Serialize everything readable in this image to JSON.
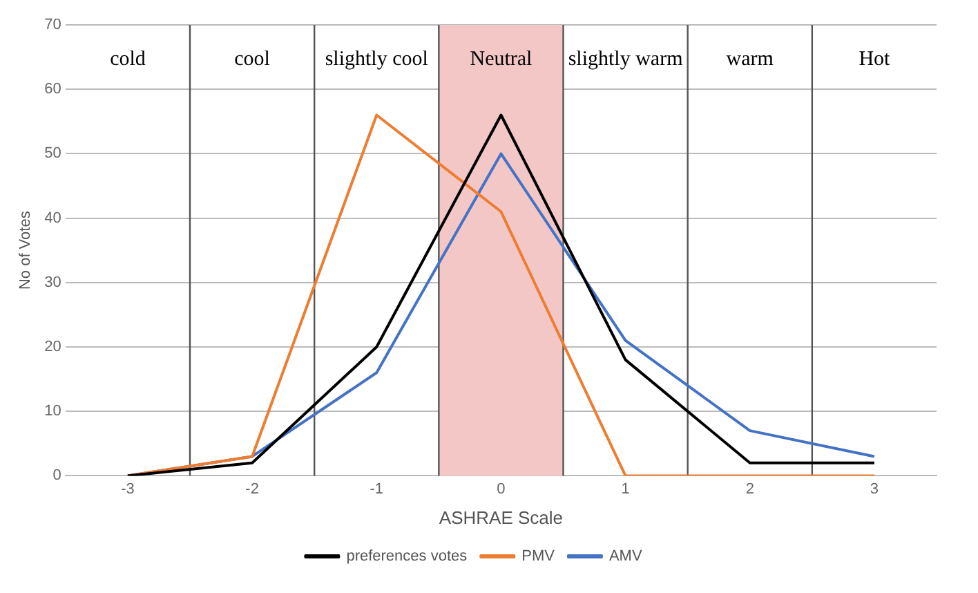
{
  "chart_data": {
    "type": "line",
    "xlabel": "ASHRAE Scale",
    "ylabel": "No of Votes",
    "x": [
      -3,
      -2,
      -1,
      0,
      1,
      2,
      3
    ],
    "xlim": [
      -3.5,
      3.5
    ],
    "xticks": [
      -3,
      -2,
      -1,
      0,
      1,
      2,
      3
    ],
    "ylim": [
      0,
      70
    ],
    "yticks": [
      0,
      10,
      20,
      30,
      40,
      50,
      60,
      70
    ],
    "grid": "y",
    "legend": "bottom",
    "marker": "none",
    "line_style": "solid",
    "series": [
      {
        "name": "preferences votes",
        "color": "#000000",
        "values": [
          0,
          2,
          20,
          56,
          18,
          2,
          2
        ]
      },
      {
        "name": "PMV",
        "color": "#ed7d31",
        "values": [
          0,
          3,
          56,
          41,
          0,
          0,
          0
        ]
      },
      {
        "name": "AMV",
        "color": "#4472c4",
        "values": [
          0,
          3,
          16,
          50,
          21,
          7,
          3
        ]
      }
    ],
    "ref_lines": [
      {
        "axis": "x",
        "value": -2.5,
        "color": "#555555"
      },
      {
        "axis": "x",
        "value": -1.5,
        "color": "#555555"
      },
      {
        "axis": "x",
        "value": -0.5,
        "color": "#555555"
      },
      {
        "axis": "x",
        "value": 0.5,
        "color": "#555555"
      },
      {
        "axis": "x",
        "value": 1.5,
        "color": "#555555"
      },
      {
        "axis": "x",
        "value": 2.5,
        "color": "#555555"
      }
    ],
    "bands": [
      {
        "axis": "x",
        "from": -0.5,
        "to": 0.5,
        "color": "#f4c7c7"
      }
    ],
    "annotations": [
      "cold",
      "cool",
      "slightly cool",
      "Neutral",
      "slightly warm",
      "warm",
      "Hot"
    ]
  }
}
